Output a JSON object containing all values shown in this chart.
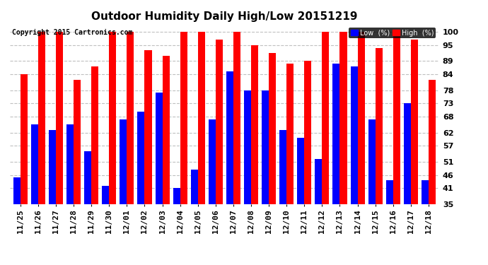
{
  "title": "Outdoor Humidity Daily High/Low 20151219",
  "copyright": "Copyright 2015 Cartronics.com",
  "dates": [
    "11/25",
    "11/26",
    "11/27",
    "11/28",
    "11/29",
    "11/30",
    "12/01",
    "12/02",
    "12/03",
    "12/04",
    "12/05",
    "12/06",
    "12/07",
    "12/08",
    "12/09",
    "12/10",
    "12/11",
    "12/12",
    "12/13",
    "12/14",
    "12/15",
    "12/16",
    "12/17",
    "12/18"
  ],
  "high": [
    84,
    100,
    100,
    82,
    87,
    100,
    100,
    93,
    91,
    100,
    100,
    97,
    100,
    95,
    92,
    88,
    89,
    100,
    100,
    100,
    94,
    100,
    97,
    82
  ],
  "low": [
    45,
    65,
    63,
    65,
    55,
    42,
    67,
    70,
    77,
    41,
    48,
    67,
    85,
    78,
    78,
    63,
    60,
    52,
    88,
    87,
    67,
    44,
    73,
    44
  ],
  "high_color": "#ff0000",
  "low_color": "#0000ff",
  "bg_color": "#ffffff",
  "grid_color": "#c0c0c0",
  "ymin": 35,
  "ymax": 100,
  "ylim": [
    35,
    103
  ],
  "yticks": [
    35,
    41,
    46,
    51,
    57,
    62,
    68,
    73,
    78,
    84,
    89,
    95,
    100
  ],
  "bar_width": 0.4,
  "title_fontsize": 11,
  "tick_fontsize": 8,
  "copyright_fontsize": 7
}
